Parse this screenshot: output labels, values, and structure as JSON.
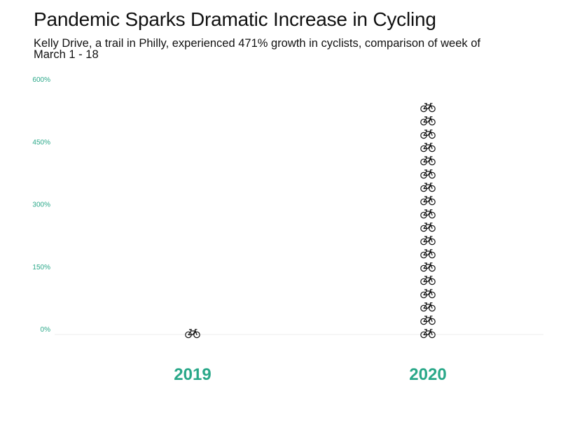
{
  "header": {
    "title": "Pandemic Sparks Dramatic Increase in Cycling",
    "subtitle": "Kelly Drive, a trail in Philly, experienced 471% growth in cyclists, comparison of week of March 1 - 18"
  },
  "colors": {
    "accent": "#2aa889",
    "axis_line": "#eeeeee",
    "icon": "#111111"
  },
  "icon": "bicycle-icon",
  "chart_data": {
    "type": "bar",
    "title": "Pandemic Sparks Dramatic Increase in Cycling",
    "subtitle": "Kelly Drive, a trail in Philly, experienced 471% growth in cyclists, comparison of week of March 1 - 18",
    "categories": [
      "2019",
      "2020"
    ],
    "values": [
      0,
      471
    ],
    "icon_counts": [
      1,
      18
    ],
    "yticks": [
      "0%",
      "150%",
      "300%",
      "450%",
      "600%"
    ],
    "ytick_values": [
      0,
      150,
      300,
      450,
      600
    ],
    "ylim": [
      0,
      600
    ],
    "xlabel": "",
    "ylabel": "",
    "grid": false,
    "legend": "none"
  }
}
